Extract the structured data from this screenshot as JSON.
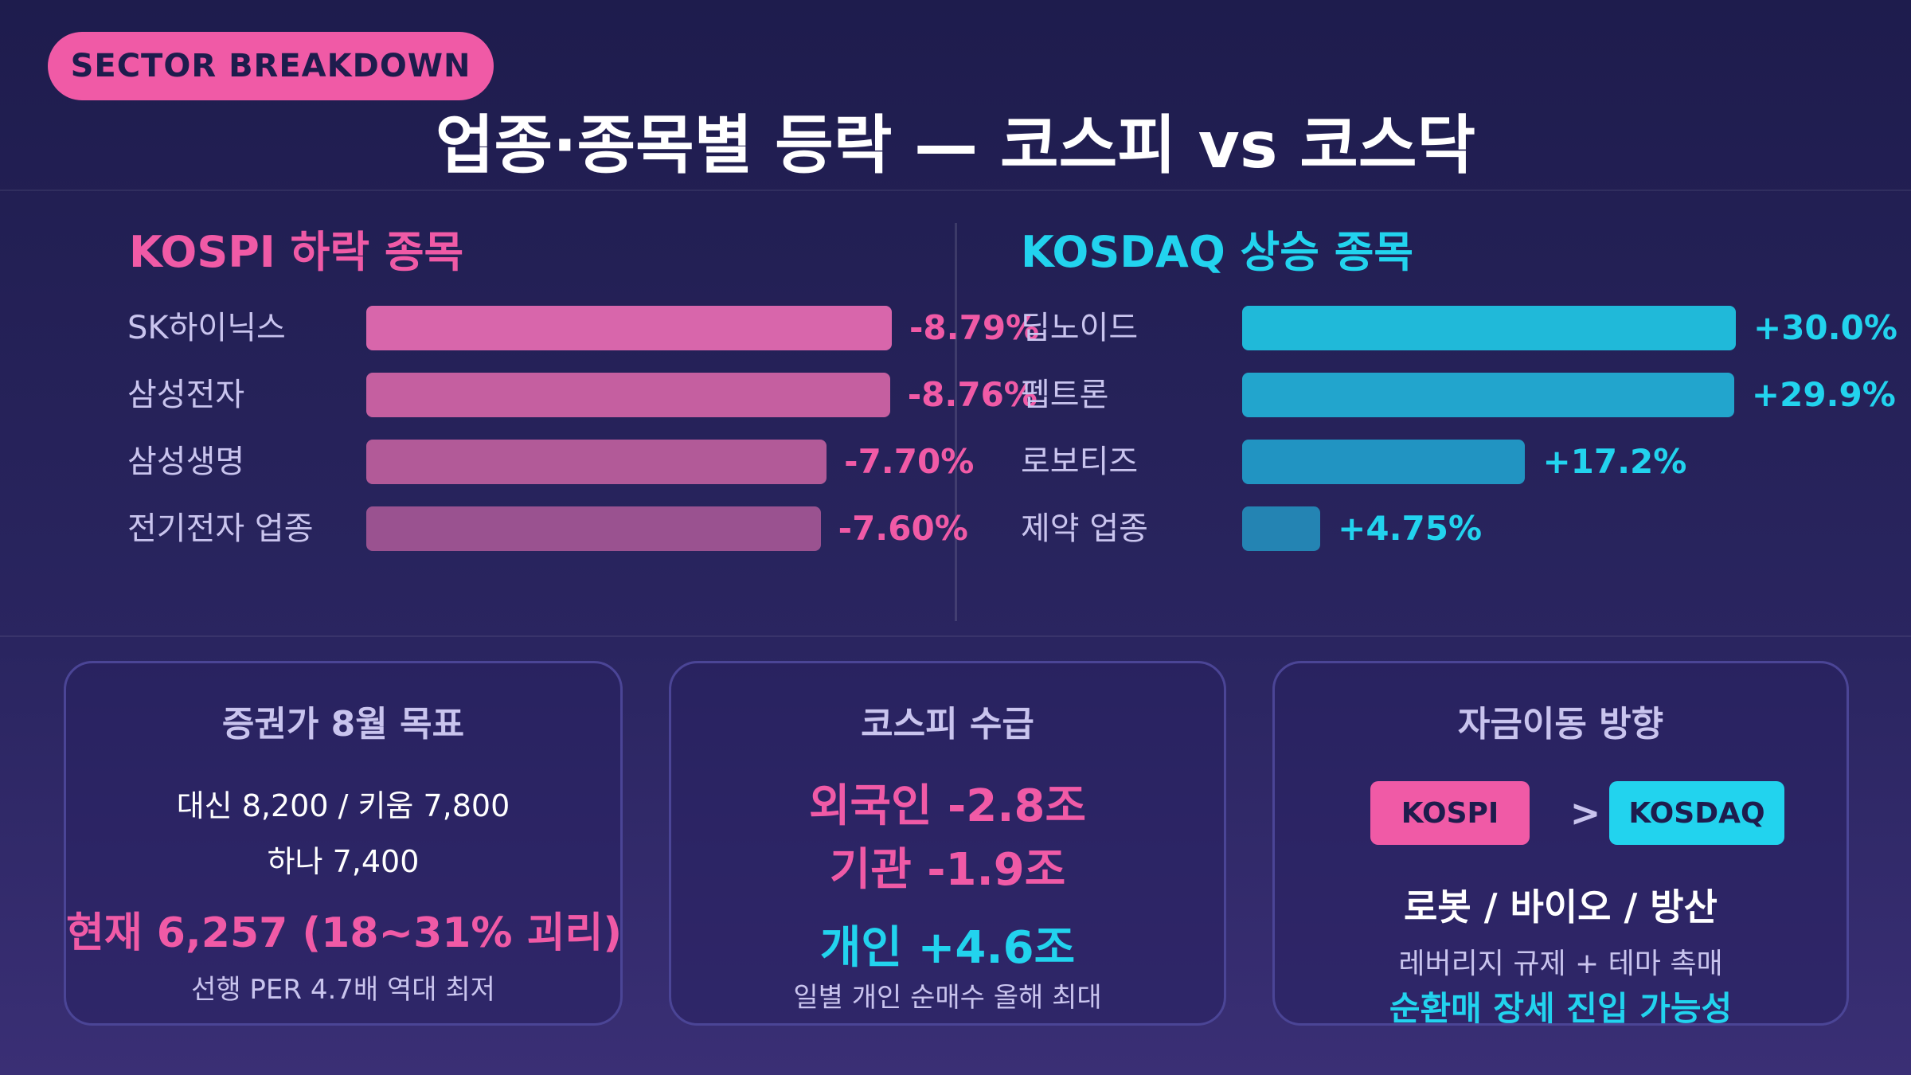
{
  "badge": "SECTOR BREAKDOWN",
  "title": "업종·종목별 등락 — 코스피 vs 코스닥",
  "colors": {
    "pink": "#f05aa6",
    "cyan": "#22d3ee",
    "lavender": "#c9c4ee"
  },
  "chart_data": [
    {
      "type": "bar",
      "orientation": "horizontal",
      "title": "KOSPI 하락 종목",
      "categories": [
        "SK하이닉스",
        "삼성전자",
        "삼성생명",
        "전기전자 업종"
      ],
      "values": [
        -8.79,
        -8.76,
        -7.7,
        -7.6
      ],
      "value_labels": [
        "-8.79%",
        "-8.76%",
        "-7.70%",
        "-7.60%"
      ],
      "bar_colors": [
        "#d866ab",
        "#c55fa0",
        "#b25a98",
        "#9a5290"
      ]
    },
    {
      "type": "bar",
      "orientation": "horizontal",
      "title": "KOSDAQ 상승 종목",
      "categories": [
        "딥노이드",
        "펩트론",
        "로보티즈",
        "제약 업종"
      ],
      "values": [
        30.0,
        29.9,
        17.2,
        4.75
      ],
      "value_labels": [
        "+30.0%",
        "+29.9%",
        "+17.2%",
        "+4.75%"
      ],
      "bar_colors": [
        "#20b9d9",
        "#22a5cd",
        "#2194c2",
        "#2484b3"
      ]
    }
  ],
  "cards": {
    "target": {
      "title": "증권가 8월 목표",
      "line1": "대신 8,200 / 키움 7,800",
      "line2": "하나 7,400",
      "current": "현재 6,257 (18~31% 괴리)",
      "note": "선행 PER 4.7배 역대 최저"
    },
    "flow": {
      "title": "코스피 수급",
      "foreign": "외국인 -2.8조",
      "institution": "기관 -1.9조",
      "individual": "개인 +4.6조",
      "note": "일별 개인 순매수 올해 최대"
    },
    "direction": {
      "title": "자금이동 방향",
      "left_pill": "KOSPI",
      "operator": ">",
      "right_pill": "KOSDAQ",
      "themes": "로봇 / 바이오 / 방산",
      "note": "레버리지 규제 + 테마 촉매",
      "conclusion": "순환매 장세 진입 가능성"
    }
  }
}
